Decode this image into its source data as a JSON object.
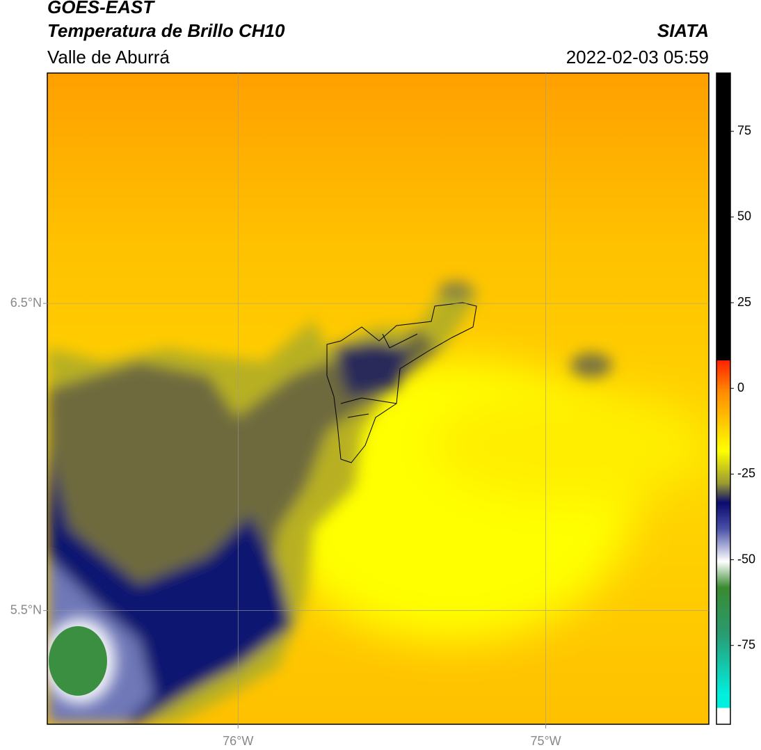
{
  "header": {
    "source": "GOES-EAST",
    "title": "Temperatura de Brillo CH10",
    "region": "Valle de Aburrá",
    "agency": "SIATA",
    "timestamp": "2022-02-03 05:59"
  },
  "map": {
    "lon_range": [
      -76.62,
      -74.47
    ],
    "lat_range": [
      5.13,
      7.25
    ],
    "lon_ticks": [
      {
        "value": -76,
        "label": "76°W"
      },
      {
        "value": -75,
        "label": "75°W"
      }
    ],
    "lat_ticks": [
      {
        "value": 6.5,
        "label": "6.5°N"
      },
      {
        "value": 5.5,
        "label": "5.5°N"
      }
    ]
  },
  "colorbar": {
    "range": [
      -98,
      92
    ],
    "ticks": [
      75,
      50,
      25,
      0,
      -25,
      -50,
      -75
    ]
  }
}
